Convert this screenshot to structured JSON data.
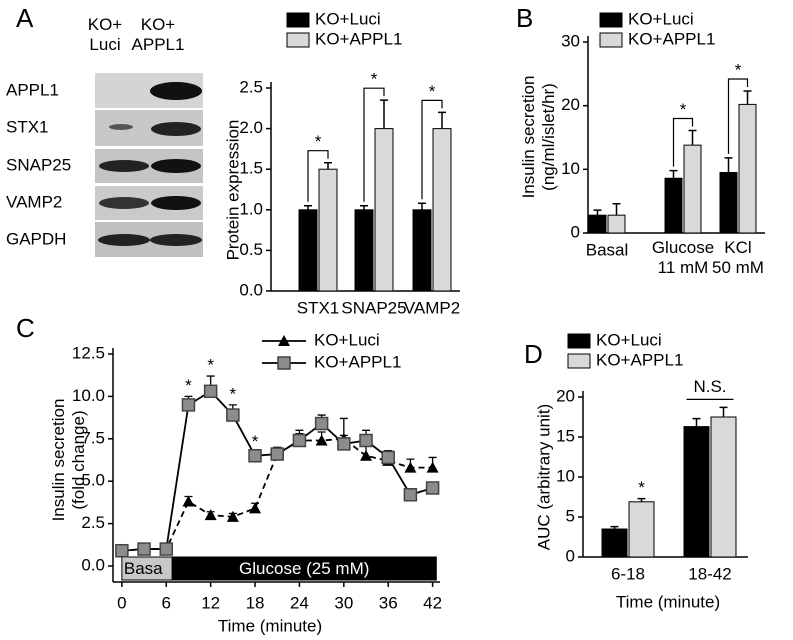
{
  "blot": {
    "columns": [
      "KO+\nLuci",
      "KO+\nAPPL1"
    ],
    "rows": [
      "APPL1",
      "STX1",
      "SNAP25",
      "VAMP2",
      "GAPDH"
    ]
  },
  "chart_data": [
    {
      "type": "bar",
      "panel": "A",
      "ylabel": "Protein expression",
      "categories": [
        "STX1",
        "SNAP25",
        "VAMP2"
      ],
      "series": [
        {
          "name": "KO+Luci",
          "color": "#000000",
          "values": [
            1.0,
            1.0,
            1.0
          ],
          "errors": [
            0.05,
            0.05,
            0.08
          ]
        },
        {
          "name": "KO+APPL1",
          "color": "#d9d9d9",
          "values": [
            1.5,
            2.0,
            2.0
          ],
          "errors": [
            0.08,
            0.35,
            0.2
          ]
        }
      ],
      "ylim": [
        0,
        2.5
      ],
      "yticks": [
        {
          "value": 0,
          "label": "0.0"
        },
        {
          "value": 0.5,
          "label": "0.5"
        },
        {
          "value": 1,
          "label": "1.0"
        },
        {
          "value": 1.5,
          "label": "1.5"
        },
        {
          "value": 2,
          "label": "2.0"
        },
        {
          "value": 2.5,
          "label": "2.5"
        }
      ],
      "annotations": [
        "*",
        "*",
        "*"
      ]
    },
    {
      "type": "bar",
      "panel": "B",
      "ylabel": "Insulin secretion\n(ng/ml/islet/hr)",
      "categories": [
        "Basal",
        "Glucose\n11 mM",
        "KCl\n50 mM"
      ],
      "series": [
        {
          "name": "KO+Luci",
          "color": "#000000",
          "values": [
            2.8,
            8.6,
            9.5
          ],
          "errors": [
            0.8,
            1.2,
            2.3
          ]
        },
        {
          "name": "KO+APPL1",
          "color": "#d9d9d9",
          "values": [
            2.8,
            13.8,
            20.2
          ],
          "errors": [
            1.8,
            2.3,
            2.1
          ]
        }
      ],
      "ylim": [
        0,
        30
      ],
      "yticks": [
        0,
        10,
        20,
        30
      ],
      "annotations": [
        "*",
        "*"
      ]
    },
    {
      "type": "line",
      "panel": "C",
      "ylabel": "Insulin secretion\n(fold change)",
      "xlabel": "Time (minute)",
      "x": [
        0,
        3,
        6,
        9,
        12,
        15,
        18,
        21,
        24,
        27,
        30,
        33,
        36,
        39,
        42
      ],
      "series": [
        {
          "name": "KO+Luci",
          "color": "#000000",
          "marker": "triangle",
          "dashed": true,
          "values": [
            0.9,
            1.0,
            1.0,
            3.8,
            3.0,
            2.9,
            3.4,
            6.6,
            7.4,
            7.4,
            7.5,
            6.5,
            6.2,
            5.8,
            5.8
          ],
          "errors": [
            0.1,
            0.1,
            0.1,
            0.3,
            0.2,
            0.2,
            0.3,
            0.4,
            0.6,
            0.5,
            1.2,
            1.1,
            0.4,
            0.5,
            0.6
          ]
        },
        {
          "name": "KO+APPL1",
          "color": "#8c8c8c",
          "marker": "square",
          "dashed": false,
          "values": [
            0.9,
            1.0,
            1.0,
            9.5,
            10.3,
            8.9,
            6.5,
            6.6,
            7.4,
            8.4,
            7.2,
            7.4,
            6.4,
            4.2,
            4.6
          ],
          "errors": [
            0.1,
            0.1,
            0.1,
            0.5,
            0.9,
            0.6,
            0.2,
            0.2,
            0.4,
            0.5,
            0.5,
            0.6,
            0.4,
            0.3,
            0.3
          ]
        }
      ],
      "xlim": [
        -1.2,
        43
      ],
      "xticks": [
        0,
        6,
        12,
        18,
        24,
        30,
        36,
        42
      ],
      "ylim": [
        0,
        12.5
      ],
      "yticks": [
        {
          "value": 0,
          "label": "0.0"
        },
        {
          "value": 2.5,
          "label": "2.5"
        },
        {
          "value": 5,
          "label": "5.0"
        },
        {
          "value": 7.5,
          "label": "7.5"
        },
        {
          "value": 10,
          "label": "10.0"
        },
        {
          "value": 12.5,
          "label": "12.5"
        }
      ],
      "phases": [
        {
          "label": "Basa",
          "start": 0,
          "end": 6.8
        },
        {
          "label": "Glucose (25 mM)",
          "start": 6.8,
          "end": 42.5
        }
      ],
      "annotations": [
        "*",
        "*",
        "*",
        "*"
      ]
    },
    {
      "type": "bar",
      "panel": "D",
      "ylabel": "AUC (arbitrary unit)",
      "xlabel": "Time (minute)",
      "categories": [
        "6-18",
        "18-42"
      ],
      "series": [
        {
          "name": "KO+Luci",
          "color": "#000000",
          "values": [
            3.5,
            16.3
          ],
          "errors": [
            0.3,
            1.0
          ]
        },
        {
          "name": "KO+APPL1",
          "color": "#d9d9d9",
          "values": [
            6.9,
            17.5
          ],
          "errors": [
            0.4,
            1.2
          ]
        }
      ],
      "ylim": [
        0,
        20
      ],
      "yticks": [
        0,
        5,
        10,
        15,
        20
      ],
      "annotations": [
        "*",
        "N.S."
      ]
    }
  ]
}
